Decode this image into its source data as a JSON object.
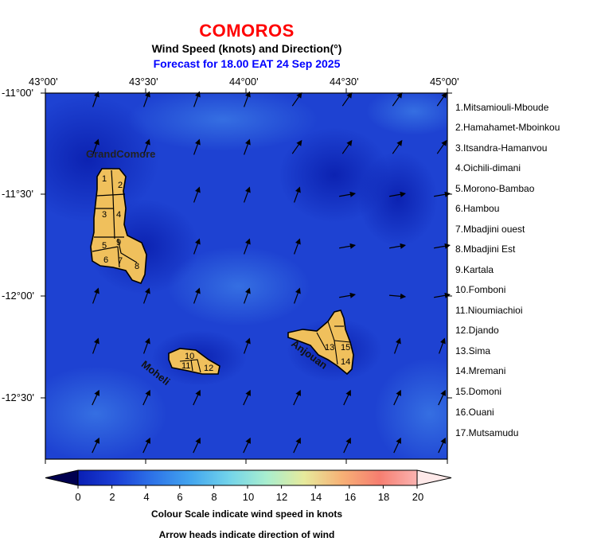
{
  "header": {
    "country": "COMOROS",
    "subtitle": "Wind Speed (knots) and Direction(°)",
    "forecast": "Forecast for  18.00 EAT 24 Sep 2025"
  },
  "axes": {
    "x_ticks": [
      "43°00'",
      "43°30'",
      "44°00'",
      "44°30'",
      "45°00'"
    ],
    "y_ticks": [
      "-11°00'",
      "-11°30'",
      "-12°00'",
      "-12°30'"
    ]
  },
  "islands": {
    "grand_comore": "GrandComore",
    "moheli": "Moheli",
    "anjouan": "Anjouan"
  },
  "region_numbers": [
    "1",
    "2",
    "3",
    "4",
    "5",
    "6",
    "7",
    "8",
    "9",
    "10",
    "11",
    "12",
    "13",
    "14",
    "15"
  ],
  "regions": [
    "1.Mitsamiouli-Mboude",
    "2.Hamahamet-Mboinkou",
    "3.Itsandra-Hamanvou",
    "4.Oichili-dimani",
    "5.Morono-Bambao",
    "6.Hambou",
    "7.Mbadjini ouest",
    "8.Mbadjini Est",
    "9.Kartala",
    "10.Fomboni",
    "11.Nioumiachioi",
    "12.Djando",
    "13.Sima",
    "14.Mremani",
    "15.Domoni",
    "16.Ouani",
    "17.Mutsamudu"
  ],
  "colorbar": {
    "ticks": [
      "0",
      "2",
      "4",
      "6",
      "8",
      "10",
      "12",
      "14",
      "16",
      "18",
      "20"
    ],
    "min": 0,
    "max": 20,
    "colors": [
      "#000050",
      "#0a1fb4",
      "#1b3fd6",
      "#2e74e8",
      "#43a6ef",
      "#72d3ea",
      "#a8eecf",
      "#e6ea9c",
      "#f7b176",
      "#f67e70",
      "#fbb3b1",
      "#fee9e9"
    ]
  },
  "notes": {
    "scale": "Colour Scale indicate wind speed in knots",
    "arrows": "Arrow heads indicate direction of wind"
  },
  "colors": {
    "title": "#ff0000",
    "forecast": "#0000ff",
    "land": "#f0c05c",
    "sea": "#1e40d0"
  }
}
